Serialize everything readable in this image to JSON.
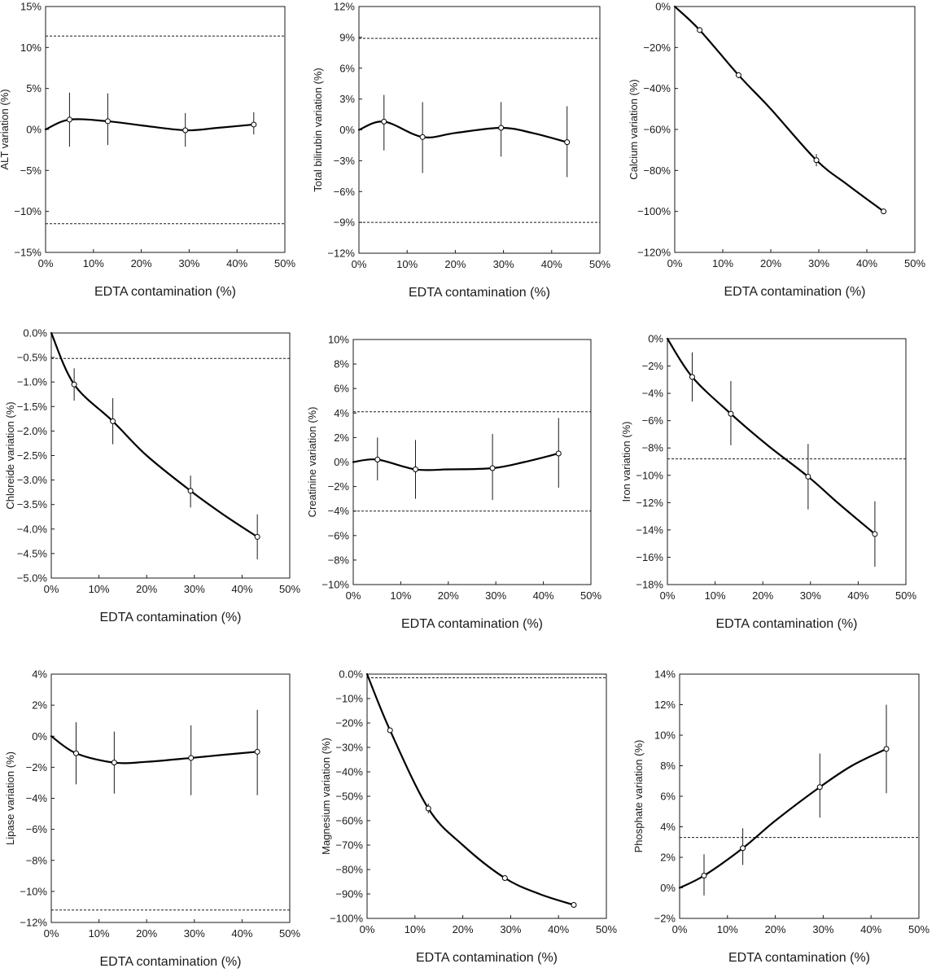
{
  "chart_data": [
    {
      "type": "line",
      "ylabel": "ALT variation (%)",
      "xlabel": "EDTA contamination (%)",
      "xlim": [
        0,
        50
      ],
      "ylim": [
        -15,
        15
      ],
      "xticks": [
        0,
        10,
        20,
        30,
        40,
        50
      ],
      "xtick_labels": [
        "0%",
        "10%",
        "20%",
        "30%",
        "40%",
        "50%"
      ],
      "yticks": [
        -15,
        -10,
        -5,
        0,
        5,
        10,
        15
      ],
      "ytick_labels": [
        "-15%",
        "-10%",
        "-5%",
        "0%",
        "5%",
        "10%",
        "15%"
      ],
      "reference_lines": [
        11.4,
        -11.5
      ],
      "x": [
        5,
        13,
        29.2,
        43.5
      ],
      "y": [
        1.2,
        1.0,
        -0.1,
        0.6
      ],
      "error": [
        [
          -2.1,
          4.5
        ],
        [
          -1.9,
          4.4
        ],
        [
          -2.1,
          2.0
        ],
        [
          -0.6,
          2.1
        ]
      ],
      "curve": [
        [
          0,
          0
        ],
        [
          5,
          1.2
        ],
        [
          13,
          1.0
        ],
        [
          20,
          0.5
        ],
        [
          29.2,
          -0.1
        ],
        [
          36,
          0.2
        ],
        [
          43.5,
          0.6
        ]
      ],
      "grid": false
    },
    {
      "type": "line",
      "ylabel": "Total bilirubin variation (%)",
      "xlabel": "EDTA contamination (%)",
      "xlim": [
        0,
        50
      ],
      "ylim": [
        -12,
        12
      ],
      "xticks": [
        0,
        10,
        20,
        30,
        40,
        50
      ],
      "xtick_labels": [
        "0%",
        "10%",
        "20%",
        "30%",
        "40%",
        "50%"
      ],
      "yticks": [
        -12,
        -9,
        -6,
        -3,
        0,
        3,
        6,
        9,
        12
      ],
      "ytick_labels": [
        "-12%",
        "-9%",
        "-6%",
        "-3%",
        "0%",
        "3%",
        "6%",
        "9%",
        "12%"
      ],
      "reference_lines": [
        8.9,
        -9.0
      ],
      "x": [
        5.2,
        13.2,
        29.5,
        43.2
      ],
      "y": [
        0.8,
        -0.7,
        0.2,
        -1.2
      ],
      "error": [
        [
          -2.0,
          3.4
        ],
        [
          -4.2,
          2.7
        ],
        [
          -2.6,
          2.7
        ],
        [
          -4.6,
          2.3
        ]
      ],
      "curve": [
        [
          0,
          0
        ],
        [
          5.2,
          0.8
        ],
        [
          13.2,
          -0.7
        ],
        [
          20,
          -0.3
        ],
        [
          29.5,
          0.2
        ],
        [
          36,
          -0.3
        ],
        [
          43.2,
          -1.2
        ]
      ],
      "grid": false
    },
    {
      "type": "line",
      "ylabel": "Calcium variation (%)",
      "xlabel": "EDTA contamination (%)",
      "xlim": [
        0,
        50
      ],
      "ylim": [
        -120,
        0
      ],
      "xticks": [
        0,
        10,
        20,
        30,
        40,
        50
      ],
      "xtick_labels": [
        "0%",
        "10%",
        "20%",
        "30%",
        "40%",
        "50%"
      ],
      "yticks": [
        -120,
        -100,
        -80,
        -60,
        -40,
        -20,
        0
      ],
      "ytick_labels": [
        "-120%",
        "-100%",
        "-80%",
        "-60%",
        "-40%",
        "-20%",
        "0%"
      ],
      "reference_lines": [
        0
      ],
      "x": [
        5.2,
        13.3,
        29.5,
        43.5
      ],
      "y": [
        -11.5,
        -33.5,
        -75,
        -100
      ],
      "error": [
        [
          -13,
          -10
        ],
        [
          -35,
          -32
        ],
        [
          -78,
          -72
        ],
        [
          -101,
          -99
        ]
      ],
      "curve": [
        [
          0,
          0
        ],
        [
          5.2,
          -11.5
        ],
        [
          13.3,
          -33.5
        ],
        [
          20,
          -50
        ],
        [
          29.5,
          -75
        ],
        [
          36,
          -87
        ],
        [
          43.5,
          -100
        ]
      ],
      "grid": false
    },
    {
      "type": "line",
      "ylabel": "Chloreide variation (%)",
      "xlabel": "EDTA contamination (%)",
      "xlim": [
        0,
        50
      ],
      "ylim": [
        -5,
        0
      ],
      "xticks": [
        0,
        10,
        20,
        30,
        40,
        50
      ],
      "xtick_labels": [
        "0%",
        "10%",
        "20%",
        "30%",
        "40%",
        "50%"
      ],
      "yticks": [
        -5,
        -4.5,
        -4,
        -3.5,
        -3,
        -2.5,
        -2,
        -1.5,
        -1,
        -0.5,
        0
      ],
      "ytick_labels": [
        "-5.0%",
        "-4.5%",
        "-4.0%",
        "-3.5%",
        "-3.0%",
        "-2.5%",
        "-2.0%",
        "-1.5%",
        "-1.0%",
        "-0.5%",
        "0.0%"
      ],
      "reference_lines": [
        -0.52
      ],
      "x": [
        4.8,
        12.9,
        29.2,
        43.2
      ],
      "y": [
        -1.05,
        -1.8,
        -3.22,
        -4.16
      ],
      "error": [
        [
          -1.38,
          -0.72
        ],
        [
          -2.27,
          -1.33
        ],
        [
          -3.56,
          -2.91
        ],
        [
          -4.62,
          -3.7
        ]
      ],
      "curve": [
        [
          0,
          0
        ],
        [
          4.8,
          -1.05
        ],
        [
          12.9,
          -1.8
        ],
        [
          20,
          -2.5
        ],
        [
          29.2,
          -3.22
        ],
        [
          36,
          -3.7
        ],
        [
          43.2,
          -4.16
        ]
      ],
      "grid": false
    },
    {
      "type": "line",
      "ylabel": "Creatinine variation (%)",
      "xlabel": "EDTA contamination (%)",
      "xlim": [
        0,
        50
      ],
      "ylim": [
        -10,
        10
      ],
      "xticks": [
        0,
        10,
        20,
        30,
        40,
        50
      ],
      "xtick_labels": [
        "0%",
        "10%",
        "20%",
        "30%",
        "40%",
        "50%"
      ],
      "yticks": [
        -10,
        -8,
        -6,
        -4,
        -2,
        0,
        2,
        4,
        6,
        8,
        10
      ],
      "ytick_labels": [
        "-10%",
        "-8%",
        "-6%",
        "-4%",
        "-2%",
        "0%",
        "2%",
        "4%",
        "6%",
        "8%",
        "10%"
      ],
      "reference_lines": [
        4.1,
        -4.0
      ],
      "x": [
        5.1,
        13.1,
        29.3,
        43.2
      ],
      "y": [
        0.2,
        -0.6,
        -0.5,
        0.7
      ],
      "error": [
        [
          -1.5,
          2.0
        ],
        [
          -3.0,
          1.8
        ],
        [
          -3.1,
          2.3
        ],
        [
          -2.1,
          3.6
        ]
      ],
      "curve": [
        [
          0,
          0
        ],
        [
          5.1,
          0.2
        ],
        [
          13.1,
          -0.6
        ],
        [
          20,
          -0.6
        ],
        [
          29.3,
          -0.5
        ],
        [
          36,
          0.0
        ],
        [
          43.2,
          0.7
        ]
      ],
      "grid": false
    },
    {
      "type": "line",
      "ylabel": "Iron variation (%)",
      "xlabel": "EDTA contamination (%)",
      "xlim": [
        0,
        50
      ],
      "ylim": [
        -18,
        0
      ],
      "xticks": [
        0,
        10,
        20,
        30,
        40,
        50
      ],
      "xtick_labels": [
        "0%",
        "10%",
        "20%",
        "30%",
        "40%",
        "50%"
      ],
      "yticks": [
        -18,
        -16,
        -14,
        -12,
        -10,
        -8,
        -6,
        -4,
        -2,
        0
      ],
      "ytick_labels": [
        "-18%",
        "-16%",
        "-14%",
        "-12%",
        "-10%",
        "-8%",
        "-6%",
        "-4%",
        "-2%",
        "0%"
      ],
      "reference_lines": [
        -8.8
      ],
      "x": [
        5.2,
        13.3,
        29.5,
        43.5
      ],
      "y": [
        -2.8,
        -5.5,
        -10.1,
        -14.3
      ],
      "error": [
        [
          -4.6,
          -1.0
        ],
        [
          -7.8,
          -3.1
        ],
        [
          -12.5,
          -7.7
        ],
        [
          -16.7,
          -11.9
        ]
      ],
      "curve": [
        [
          0,
          0
        ],
        [
          5.2,
          -2.8
        ],
        [
          13.3,
          -5.5
        ],
        [
          21,
          -7.8
        ],
        [
          29.5,
          -10.1
        ],
        [
          36,
          -12.1
        ],
        [
          43.5,
          -14.3
        ]
      ],
      "grid": false
    },
    {
      "type": "line",
      "ylabel": "Lipase variation (%)",
      "xlabel": "EDTA contamination (%)",
      "xlim": [
        0,
        50
      ],
      "ylim": [
        -12,
        4
      ],
      "xticks": [
        0,
        10,
        20,
        30,
        40,
        50
      ],
      "xtick_labels": [
        "0%",
        "10%",
        "20%",
        "30%",
        "40%",
        "50%"
      ],
      "yticks": [
        -12,
        -10,
        -8,
        -6,
        -4,
        -2,
        0,
        2,
        4
      ],
      "ytick_labels": [
        "-12%",
        "-10%",
        "-8%",
        "-6%",
        "-4%",
        "-2%",
        "0%",
        "2%",
        "4%"
      ],
      "reference_lines": [
        -11.2
      ],
      "x": [
        5.2,
        13.2,
        29.3,
        43.2
      ],
      "y": [
        -1.1,
        -1.7,
        -1.4,
        -1.0
      ],
      "error": [
        [
          -3.1,
          0.9
        ],
        [
          -3.7,
          0.3
        ],
        [
          -3.8,
          0.7
        ],
        [
          -3.8,
          1.7
        ]
      ],
      "curve": [
        [
          0,
          0
        ],
        [
          5.2,
          -1.1
        ],
        [
          13.2,
          -1.7
        ],
        [
          20,
          -1.65
        ],
        [
          29.3,
          -1.4
        ],
        [
          36,
          -1.2
        ],
        [
          43.2,
          -1.0
        ]
      ],
      "grid": false
    },
    {
      "type": "line",
      "ylabel": "Magnesium variation (%)",
      "xlabel": "EDTA contamination (%)",
      "xlim": [
        0,
        50
      ],
      "ylim": [
        -100,
        0
      ],
      "xticks": [
        0,
        10,
        20,
        30,
        40,
        50
      ],
      "xtick_labels": [
        "0%",
        "10%",
        "20%",
        "30%",
        "40%",
        "50%"
      ],
      "yticks": [
        -100,
        -90,
        -80,
        -70,
        -60,
        -50,
        -40,
        -30,
        -20,
        -10,
        0
      ],
      "ytick_labels": [
        "-100%",
        "-90%",
        "-80%",
        "-70%",
        "-60%",
        "-50%",
        "-40%",
        "-30%",
        "-20%",
        "-10%",
        "0.0%"
      ],
      "reference_lines": [
        -1.5
      ],
      "x": [
        4.8,
        12.8,
        28.8,
        43.2
      ],
      "y": [
        -23,
        -55,
        -83.5,
        -94.5
      ],
      "error": [
        [
          -24,
          -22
        ],
        [
          -57,
          -53
        ],
        [
          -84.5,
          -82.5
        ],
        [
          -95.5,
          -93.5
        ]
      ],
      "curve": [
        [
          0,
          0
        ],
        [
          4.8,
          -23
        ],
        [
          12.8,
          -55
        ],
        [
          20,
          -70
        ],
        [
          28.8,
          -83.5
        ],
        [
          36,
          -90
        ],
        [
          43.2,
          -94.5
        ]
      ],
      "grid": false
    },
    {
      "type": "line",
      "ylabel": "Phosphate variation (%)",
      "xlabel": "EDTA contamination (%)",
      "xlim": [
        0,
        50
      ],
      "ylim": [
        -2,
        14
      ],
      "xticks": [
        0,
        10,
        20,
        30,
        40,
        50
      ],
      "xtick_labels": [
        "0%",
        "10%",
        "20%",
        "30%",
        "40%",
        "50%"
      ],
      "yticks": [
        -2,
        0,
        2,
        4,
        6,
        8,
        10,
        12,
        14
      ],
      "ytick_labels": [
        "-2%",
        "0%",
        "2%",
        "4%",
        "6%",
        "8%",
        "10%",
        "12%",
        "14%"
      ],
      "reference_lines": [
        3.3
      ],
      "x": [
        5.1,
        13.2,
        29.3,
        43.2
      ],
      "y": [
        0.8,
        2.6,
        6.6,
        9.1
      ],
      "error": [
        [
          -0.5,
          2.2
        ],
        [
          1.5,
          3.9
        ],
        [
          4.6,
          8.8
        ],
        [
          6.2,
          12.0
        ]
      ],
      "curve": [
        [
          0,
          0
        ],
        [
          5.1,
          0.8
        ],
        [
          13.2,
          2.6
        ],
        [
          20,
          4.4
        ],
        [
          29.3,
          6.6
        ],
        [
          36,
          8.0
        ],
        [
          43.2,
          9.1
        ]
      ],
      "grid": false
    }
  ]
}
